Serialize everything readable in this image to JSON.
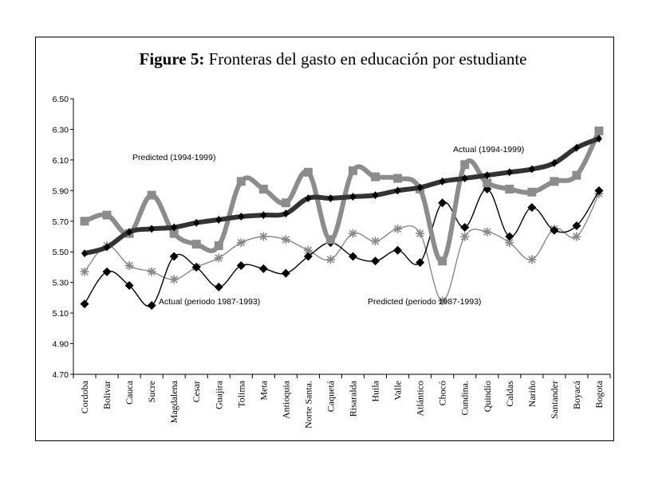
{
  "chart_data": {
    "type": "line",
    "title_bold": "Figure 5:",
    "title_rest": " Fronteras del gasto en educación por estudiante",
    "xlabel": "",
    "ylabel": "",
    "ylim": [
      4.7,
      6.5
    ],
    "yticks": [
      "4.70",
      "4.90",
      "5.10",
      "5.30",
      "5.50",
      "5.70",
      "5.90",
      "6.10",
      "6.30",
      "6.50"
    ],
    "grid": false,
    "categories": [
      "Cordoba",
      "Bolivar",
      "Cauca",
      "Sucre",
      "Magdalena",
      "Cesar",
      "Guajira",
      "Tolima",
      "Meta",
      "Antioquia",
      "Norte Santa.",
      "Caquetá",
      "Risaralda",
      "Huila",
      "Valle",
      "Atlántico",
      "Chocó",
      "Cundina.",
      "Quindío",
      "Caldas",
      "Nariño",
      "Santander",
      "Boyacá",
      "Bogota"
    ],
    "series": [
      {
        "name": "Predicted (1994-1999)",
        "color": "#8c8c8c",
        "style": "thick-square",
        "values": [
          5.7,
          5.74,
          5.62,
          5.87,
          5.62,
          5.55,
          5.54,
          5.96,
          5.91,
          5.82,
          6.02,
          5.58,
          6.03,
          5.99,
          5.98,
          5.91,
          5.44,
          6.07,
          5.95,
          5.91,
          5.89,
          5.96,
          6.0,
          6.29
        ]
      },
      {
        "name": "Actual (1994-1999)",
        "color": "#333333",
        "style": "thick-diamond",
        "values": [
          5.49,
          5.53,
          5.63,
          5.65,
          5.66,
          5.69,
          5.71,
          5.73,
          5.74,
          5.75,
          5.85,
          5.85,
          5.86,
          5.87,
          5.9,
          5.92,
          5.96,
          5.98,
          6.0,
          6.02,
          6.04,
          6.08,
          6.18,
          6.24
        ]
      },
      {
        "name": "Predicted (periodo 1987-1993)",
        "color": "#888888",
        "style": "thin-star",
        "values": [
          5.37,
          5.54,
          5.41,
          5.37,
          5.32,
          5.4,
          5.46,
          5.56,
          5.6,
          5.58,
          5.51,
          5.45,
          5.62,
          5.57,
          5.65,
          5.62,
          5.18,
          5.6,
          5.63,
          5.56,
          5.45,
          5.65,
          5.6,
          5.88
        ]
      },
      {
        "name": "Actual (periodo 1987-1993)",
        "color": "#000000",
        "style": "thin-diamond",
        "values": [
          5.16,
          5.37,
          5.28,
          5.15,
          5.47,
          5.4,
          5.27,
          5.41,
          5.39,
          5.36,
          5.47,
          5.56,
          5.47,
          5.44,
          5.51,
          5.43,
          5.82,
          5.66,
          5.91,
          5.6,
          5.79,
          5.64,
          5.67,
          5.9
        ]
      }
    ],
    "annotations": [
      {
        "text": "Predicted (1994-1999)",
        "series": "Predicted (1994-1999)"
      },
      {
        "text": "Actual (1994-1999)",
        "series": "Actual (1994-1999)"
      },
      {
        "text": "Actual (periodo 1987-1993)",
        "series": "Actual (periodo 1987-1993)"
      },
      {
        "text": "Predicted (periodo 1987-1993)",
        "series": "Predicted (periodo 1987-1993)"
      }
    ]
  }
}
